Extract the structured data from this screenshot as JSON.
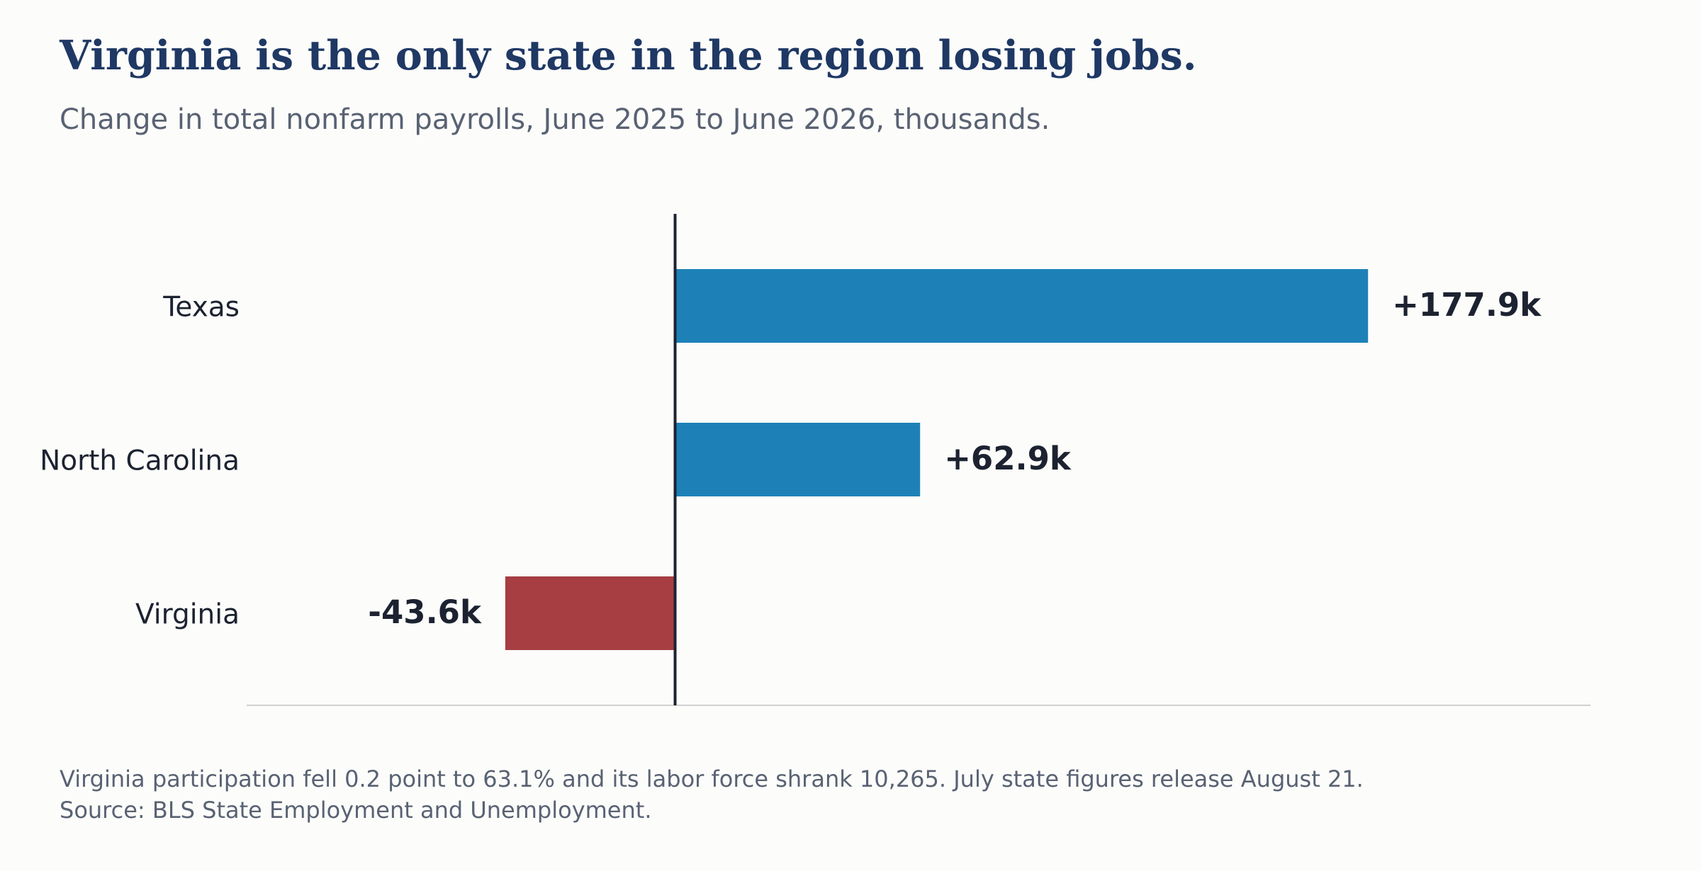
{
  "chart_data": {
    "type": "bar",
    "orientation": "horizontal",
    "title": "Virginia is the only state in the region losing jobs.",
    "subtitle": "Change in total nonfarm payrolls, June 2025 to June 2026, thousands.",
    "categories": [
      "Texas",
      "North Carolina",
      "Virginia"
    ],
    "values": [
      177.9,
      62.9,
      -43.6
    ],
    "value_labels": [
      "+177.9k",
      "+62.9k",
      "-43.6k"
    ],
    "xlim": [
      -110,
      235
    ],
    "grid": false,
    "colors": {
      "positive": "#1d81b8",
      "negative": "#a63e42",
      "zero_line": "#1c2230",
      "baseline": "#d0d0d0"
    },
    "footnote": "Virginia participation fell 0.2 point to 63.1% and its labor force shrank 10,265. July state figures release August 21. Source: BLS State Employment and Unemployment."
  }
}
